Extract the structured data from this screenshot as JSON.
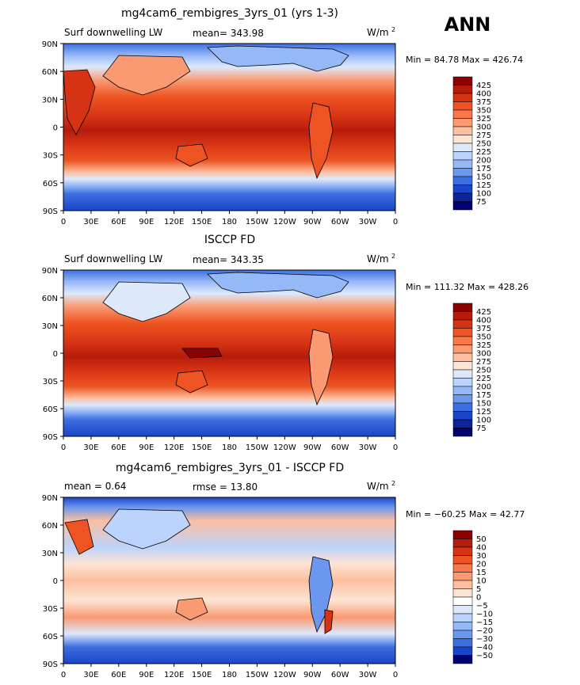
{
  "figure": {
    "season_label": "ANN",
    "units": "W/m",
    "units_superscript": "2"
  },
  "chart_data": [
    {
      "type": "heatmap",
      "title": "mg4cam6_rembigres_3yrs_01 (yrs 1-3)",
      "left_label": "Surf downwelling LW",
      "stat_text": "mean= 343.98",
      "minmax_text": "Min =  84.78 Max = 426.74",
      "x_ticks": [
        "0",
        "30E",
        "60E",
        "90E",
        "120E",
        "150E",
        "180",
        "150W",
        "120W",
        "90W",
        "60W",
        "30W",
        "0"
      ],
      "y_ticks": [
        "90N",
        "60N",
        "30N",
        "0",
        "30S",
        "60S",
        "90S"
      ],
      "xlim": [
        0,
        360
      ],
      "ylim": [
        -90,
        90
      ],
      "colorbar_levels": [
        "425",
        "400",
        "375",
        "350",
        "325",
        "300",
        "275",
        "250",
        "225",
        "200",
        "175",
        "150",
        "125",
        "100",
        "75"
      ],
      "colorbar_colors": [
        "#8b0000",
        "#b61c0c",
        "#d63314",
        "#ee5423",
        "#f7784a",
        "#fa9a72",
        "#fcbfa0",
        "#fde4d4",
        "#dde9fb",
        "#bcd3fb",
        "#95b8f7",
        "#6b97ee",
        "#3c6fe0",
        "#1a45c8",
        "#0c2497",
        "#00006e"
      ]
    },
    {
      "type": "heatmap",
      "title": "ISCCP FD",
      "left_label": "Surf downwelling LW",
      "stat_text": "mean= 343.35",
      "minmax_text": "Min = 111.32 Max = 428.26",
      "x_ticks": [
        "0",
        "30E",
        "60E",
        "90E",
        "120E",
        "150E",
        "180",
        "150W",
        "120W",
        "90W",
        "60W",
        "30W",
        "0"
      ],
      "y_ticks": [
        "90N",
        "60N",
        "30N",
        "0",
        "30S",
        "60S",
        "90S"
      ],
      "xlim": [
        0,
        360
      ],
      "ylim": [
        -90,
        90
      ],
      "colorbar_levels": [
        "425",
        "400",
        "375",
        "350",
        "325",
        "300",
        "275",
        "250",
        "225",
        "200",
        "175",
        "150",
        "125",
        "100",
        "75"
      ],
      "colorbar_colors": [
        "#8b0000",
        "#b61c0c",
        "#d63314",
        "#ee5423",
        "#f7784a",
        "#fa9a72",
        "#fcbfa0",
        "#fde4d4",
        "#dde9fb",
        "#bcd3fb",
        "#95b8f7",
        "#6b97ee",
        "#3c6fe0",
        "#1a45c8",
        "#0c2497",
        "#00006e"
      ]
    },
    {
      "type": "heatmap",
      "title": "mg4cam6_rembigres_3yrs_01 - ISCCP FD",
      "left_label": "mean =    0.64",
      "stat_text": "rmse =   13.80",
      "minmax_text": "Min = −60.25 Max =   42.77",
      "x_ticks": [
        "0",
        "30E",
        "60E",
        "90E",
        "120E",
        "150E",
        "180",
        "150W",
        "120W",
        "90W",
        "60W",
        "30W",
        "0"
      ],
      "y_ticks": [
        "90N",
        "60N",
        "30N",
        "0",
        "30S",
        "60S",
        "90S"
      ],
      "xlim": [
        0,
        360
      ],
      "ylim": [
        -90,
        90
      ],
      "colorbar_levels": [
        "50",
        "40",
        "30",
        "20",
        "15",
        "10",
        "5",
        "0",
        "−5",
        "−10",
        "−15",
        "−20",
        "−30",
        "−40",
        "−50"
      ],
      "colorbar_colors": [
        "#8b0000",
        "#b61c0c",
        "#d63314",
        "#ee5423",
        "#f7784a",
        "#fa9a72",
        "#fcbfa0",
        "#fde4d4",
        "#ffffff",
        "#dde9fb",
        "#bcd3fb",
        "#95b8f7",
        "#6b97ee",
        "#3c6fe0",
        "#1a45c8",
        "#00006e"
      ]
    }
  ]
}
